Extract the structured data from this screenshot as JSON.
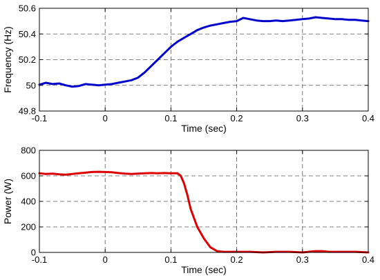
{
  "chart_data": [
    {
      "type": "line",
      "xlabel": "Time (sec)",
      "ylabel": "Frequency (Hz)",
      "xlim": [
        -0.1,
        0.4
      ],
      "ylim": [
        49.8,
        50.6
      ],
      "xticks": [
        -0.1,
        0,
        0.1,
        0.2,
        0.3,
        0.4
      ],
      "xtick_labels": [
        "-0.1",
        "0",
        "0.1",
        "0.2",
        "0.3",
        "0.4"
      ],
      "yticks": [
        49.8,
        50,
        50.2,
        50.4,
        50.6
      ],
      "ytick_labels": [
        "49.8",
        "50",
        "50.2",
        "50.4",
        "50.6"
      ],
      "grid": true,
      "series": [
        {
          "color": "#0000cc",
          "x": [
            -0.1,
            -0.09,
            -0.08,
            -0.07,
            -0.06,
            -0.05,
            -0.04,
            -0.03,
            -0.02,
            -0.01,
            0.0,
            0.01,
            0.02,
            0.03,
            0.04,
            0.05,
            0.06,
            0.07,
            0.08,
            0.09,
            0.1,
            0.11,
            0.12,
            0.13,
            0.14,
            0.15,
            0.16,
            0.17,
            0.18,
            0.19,
            0.2,
            0.21,
            0.22,
            0.23,
            0.24,
            0.25,
            0.26,
            0.27,
            0.28,
            0.29,
            0.3,
            0.31,
            0.32,
            0.33,
            0.34,
            0.35,
            0.36,
            0.37,
            0.38,
            0.39,
            0.4
          ],
          "y": [
            50.005,
            50.02,
            50.01,
            50.015,
            50.0,
            49.99,
            49.995,
            50.01,
            50.005,
            50.0,
            50.005,
            50.01,
            50.02,
            50.03,
            50.04,
            50.06,
            50.1,
            50.15,
            50.2,
            50.25,
            50.3,
            50.34,
            50.37,
            50.4,
            50.43,
            50.45,
            50.465,
            50.475,
            50.485,
            50.495,
            50.5,
            50.525,
            50.515,
            50.505,
            50.5,
            50.5,
            50.505,
            50.5,
            50.505,
            50.51,
            50.515,
            50.52,
            50.53,
            50.525,
            50.52,
            50.515,
            50.515,
            50.51,
            50.51,
            50.505,
            50.5
          ]
        }
      ]
    },
    {
      "type": "line",
      "xlabel": "Time (sec)",
      "ylabel": "Power (W)",
      "xlim": [
        -0.1,
        0.4
      ],
      "ylim": [
        0,
        800
      ],
      "xticks": [
        -0.1,
        0,
        0.1,
        0.2,
        0.3,
        0.4
      ],
      "xtick_labels": [
        "-0.1",
        "0",
        "0.1",
        "0.2",
        "0.3",
        "0.4"
      ],
      "yticks": [
        0,
        200,
        400,
        600,
        800
      ],
      "ytick_labels": [
        "0",
        "200",
        "400",
        "600",
        "800"
      ],
      "grid": true,
      "series": [
        {
          "color": "#dd0000",
          "x": [
            -0.1,
            -0.09,
            -0.08,
            -0.07,
            -0.06,
            -0.05,
            -0.04,
            -0.03,
            -0.02,
            -0.01,
            0.0,
            0.01,
            0.02,
            0.03,
            0.04,
            0.05,
            0.06,
            0.07,
            0.08,
            0.09,
            0.1,
            0.11,
            0.115,
            0.12,
            0.125,
            0.13,
            0.14,
            0.15,
            0.16,
            0.17,
            0.18,
            0.19,
            0.2,
            0.22,
            0.24,
            0.26,
            0.28,
            0.3,
            0.32,
            0.33,
            0.34,
            0.36,
            0.38,
            0.4
          ],
          "y": [
            620,
            615,
            618,
            612,
            610,
            615,
            620,
            625,
            630,
            632,
            630,
            628,
            622,
            618,
            615,
            618,
            620,
            622,
            620,
            622,
            620,
            620,
            600,
            540,
            450,
            340,
            200,
            110,
            40,
            10,
            5,
            5,
            5,
            5,
            0,
            5,
            5,
            0,
            10,
            10,
            5,
            5,
            5,
            0
          ]
        }
      ]
    }
  ]
}
